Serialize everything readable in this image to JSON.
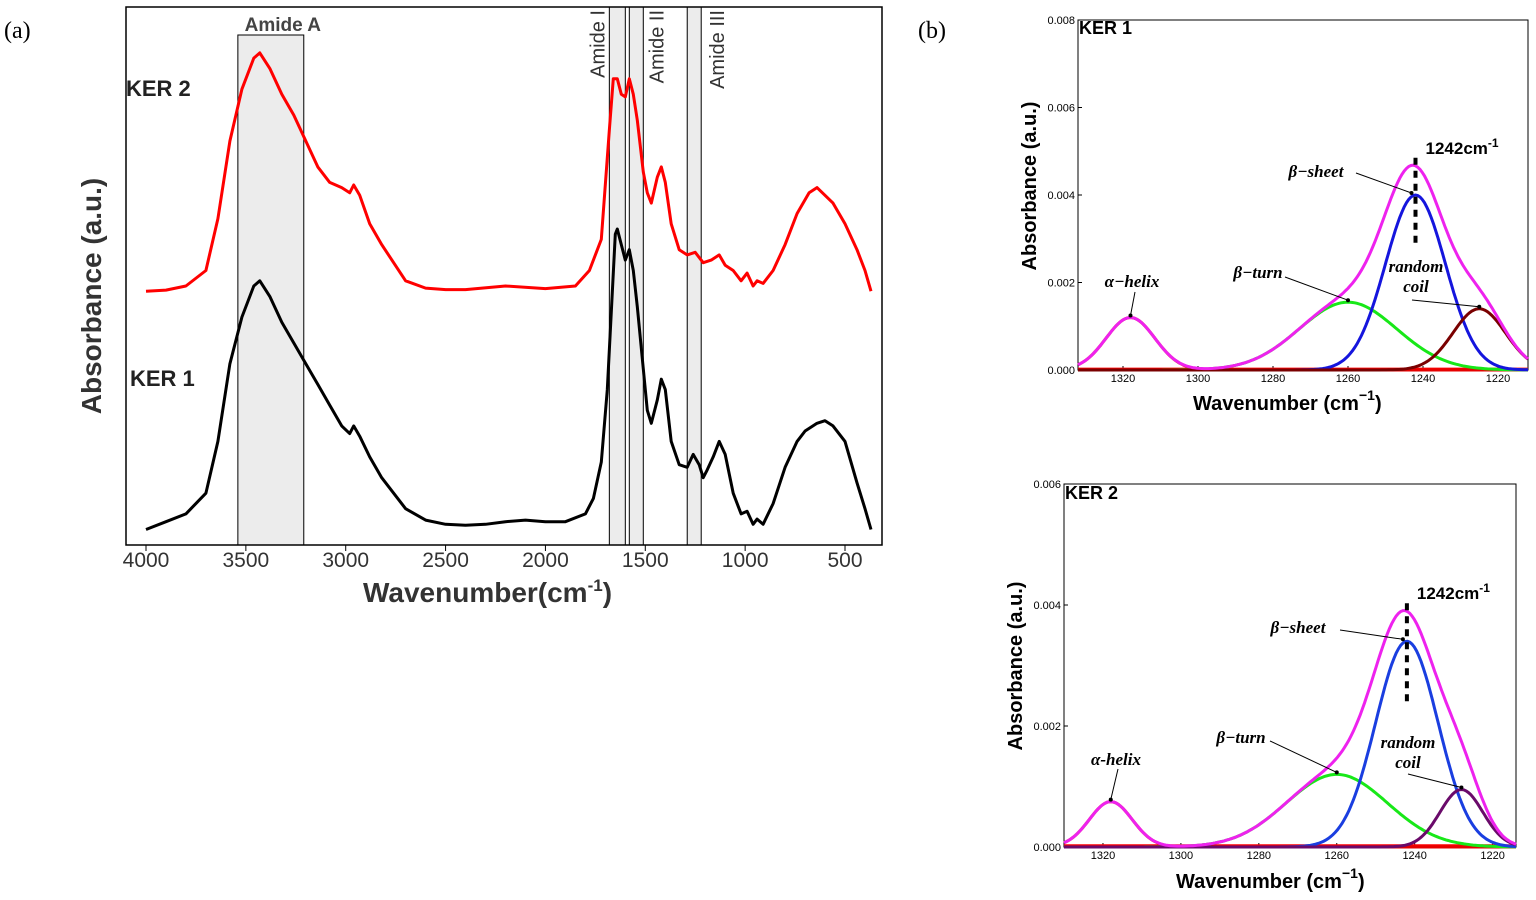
{
  "panel_labels": {
    "a": "(a)",
    "b": "(b)"
  },
  "chart_data": [
    {
      "type": "line",
      "panel": "(a)",
      "xlabel": "Wavenumber(cm",
      "xlabel_sup": "-1",
      "xlabel_close": ")",
      "ylabel": "Absorbance (a.u.)",
      "xlim": [
        4000,
        370
      ],
      "ylim": [
        0,
        1
      ],
      "x_ticks": [
        4000,
        3500,
        3000,
        2500,
        2000,
        1500,
        1000,
        500
      ],
      "x_tick_labels": [
        "4000",
        "3500",
        "3000",
        "2500",
        "2000",
        "1500",
        "1000",
        "500"
      ],
      "grid": false,
      "bands": [
        {
          "label": "Amide A",
          "from": 3540,
          "to": 3210,
          "orientation": "horizontal"
        },
        {
          "label": "Amide I",
          "from": 1680,
          "to": 1600,
          "orientation": "vertical"
        },
        {
          "label": "Amide II",
          "from": 1580,
          "to": 1510,
          "orientation": "vertical"
        },
        {
          "label": "Amide III",
          "from": 1290,
          "to": 1220,
          "orientation": "vertical"
        }
      ],
      "series": [
        {
          "name": "KER 2",
          "color": "#ff0000",
          "points": [
            [
              4000,
              0.49
            ],
            [
              3900,
              0.492
            ],
            [
              3800,
              0.5
            ],
            [
              3700,
              0.53
            ],
            [
              3640,
              0.63
            ],
            [
              3580,
              0.78
            ],
            [
              3520,
              0.88
            ],
            [
              3460,
              0.94
            ],
            [
              3430,
              0.95
            ],
            [
              3380,
              0.92
            ],
            [
              3320,
              0.87
            ],
            [
              3260,
              0.83
            ],
            [
              3200,
              0.78
            ],
            [
              3140,
              0.73
            ],
            [
              3080,
              0.7
            ],
            [
              3020,
              0.69
            ],
            [
              2980,
              0.68
            ],
            [
              2960,
              0.695
            ],
            [
              2930,
              0.675
            ],
            [
              2880,
              0.62
            ],
            [
              2820,
              0.58
            ],
            [
              2700,
              0.51
            ],
            [
              2600,
              0.496
            ],
            [
              2500,
              0.493
            ],
            [
              2400,
              0.493
            ],
            [
              2200,
              0.5
            ],
            [
              2000,
              0.495
            ],
            [
              1850,
              0.5
            ],
            [
              1780,
              0.53
            ],
            [
              1720,
              0.59
            ],
            [
              1680,
              0.8
            ],
            [
              1660,
              0.9
            ],
            [
              1640,
              0.9
            ],
            [
              1620,
              0.87
            ],
            [
              1600,
              0.865
            ],
            [
              1580,
              0.9
            ],
            [
              1560,
              0.87
            ],
            [
              1540,
              0.82
            ],
            [
              1510,
              0.72
            ],
            [
              1490,
              0.68
            ],
            [
              1470,
              0.66
            ],
            [
              1440,
              0.71
            ],
            [
              1420,
              0.73
            ],
            [
              1400,
              0.7
            ],
            [
              1370,
              0.62
            ],
            [
              1330,
              0.57
            ],
            [
              1290,
              0.56
            ],
            [
              1250,
              0.565
            ],
            [
              1210,
              0.545
            ],
            [
              1170,
              0.55
            ],
            [
              1130,
              0.56
            ],
            [
              1100,
              0.54
            ],
            [
              1060,
              0.53
            ],
            [
              1020,
              0.51
            ],
            [
              990,
              0.525
            ],
            [
              960,
              0.5
            ],
            [
              940,
              0.51
            ],
            [
              910,
              0.505
            ],
            [
              860,
              0.53
            ],
            [
              800,
              0.58
            ],
            [
              740,
              0.64
            ],
            [
              680,
              0.68
            ],
            [
              640,
              0.69
            ],
            [
              600,
              0.675
            ],
            [
              560,
              0.66
            ],
            [
              500,
              0.62
            ],
            [
              440,
              0.57
            ],
            [
              400,
              0.53
            ],
            [
              370,
              0.49
            ]
          ]
        },
        {
          "name": "KER 1",
          "color": "#000000",
          "points": [
            [
              4000,
              0.03
            ],
            [
              3900,
              0.045
            ],
            [
              3800,
              0.06
            ],
            [
              3700,
              0.1
            ],
            [
              3640,
              0.2
            ],
            [
              3580,
              0.35
            ],
            [
              3520,
              0.44
            ],
            [
              3460,
              0.5
            ],
            [
              3430,
              0.51
            ],
            [
              3380,
              0.48
            ],
            [
              3320,
              0.43
            ],
            [
              3260,
              0.39
            ],
            [
              3200,
              0.35
            ],
            [
              3140,
              0.31
            ],
            [
              3080,
              0.27
            ],
            [
              3020,
              0.23
            ],
            [
              2980,
              0.215
            ],
            [
              2960,
              0.23
            ],
            [
              2930,
              0.21
            ],
            [
              2880,
              0.17
            ],
            [
              2820,
              0.13
            ],
            [
              2700,
              0.07
            ],
            [
              2600,
              0.048
            ],
            [
              2500,
              0.04
            ],
            [
              2400,
              0.038
            ],
            [
              2300,
              0.04
            ],
            [
              2200,
              0.045
            ],
            [
              2100,
              0.048
            ],
            [
              2000,
              0.045
            ],
            [
              1900,
              0.045
            ],
            [
              1800,
              0.06
            ],
            [
              1760,
              0.09
            ],
            [
              1720,
              0.16
            ],
            [
              1690,
              0.3
            ],
            [
              1670,
              0.45
            ],
            [
              1650,
              0.6
            ],
            [
              1640,
              0.61
            ],
            [
              1620,
              0.58
            ],
            [
              1600,
              0.55
            ],
            [
              1580,
              0.57
            ],
            [
              1560,
              0.53
            ],
            [
              1540,
              0.46
            ],
            [
              1510,
              0.34
            ],
            [
              1490,
              0.26
            ],
            [
              1470,
              0.235
            ],
            [
              1440,
              0.28
            ],
            [
              1420,
              0.32
            ],
            [
              1400,
              0.3
            ],
            [
              1370,
              0.2
            ],
            [
              1330,
              0.155
            ],
            [
              1290,
              0.15
            ],
            [
              1260,
              0.175
            ],
            [
              1230,
              0.155
            ],
            [
              1210,
              0.13
            ],
            [
              1190,
              0.145
            ],
            [
              1160,
              0.17
            ],
            [
              1130,
              0.2
            ],
            [
              1100,
              0.175
            ],
            [
              1060,
              0.1
            ],
            [
              1020,
              0.06
            ],
            [
              990,
              0.065
            ],
            [
              960,
              0.04
            ],
            [
              940,
              0.05
            ],
            [
              910,
              0.04
            ],
            [
              860,
              0.08
            ],
            [
              800,
              0.15
            ],
            [
              740,
              0.2
            ],
            [
              700,
              0.22
            ],
            [
              640,
              0.235
            ],
            [
              600,
              0.24
            ],
            [
              560,
              0.23
            ],
            [
              500,
              0.2
            ],
            [
              440,
              0.12
            ],
            [
              400,
              0.07
            ],
            [
              370,
              0.03
            ]
          ]
        }
      ],
      "series_labels": [
        "KER 2",
        "KER 1"
      ]
    },
    {
      "type": "line",
      "panel": "(b)",
      "title": "KER 1",
      "xlabel": "Wavenumber (cm",
      "xlabel_sup": "−1",
      "xlabel_close": ")",
      "ylabel": "Absorbance (a.u.)",
      "xlim": [
        1332,
        1212
      ],
      "ylim": [
        0,
        0.008
      ],
      "x_ticks": [
        1320,
        1300,
        1280,
        1260,
        1240,
        1220
      ],
      "x_tick_labels": [
        "1320",
        "1300",
        "1280",
        "1260",
        "1240",
        "1220"
      ],
      "y_ticks": [
        0,
        0.002,
        0.004,
        0.006,
        0.008
      ],
      "y_tick_labels": [
        "0.000",
        "0.002",
        "0.004",
        "0.006",
        "0.008"
      ],
      "peak_marker": {
        "x": 1242,
        "label": "1242cm",
        "sup": "-1"
      },
      "components": [
        {
          "label": "α−helix",
          "color": "#e60000",
          "center": 1318,
          "amp": 0.0012,
          "sigma": 6.5
        },
        {
          "label": "β−turn",
          "color": "#18e818",
          "center": 1260,
          "amp": 0.00155,
          "sigma": 13
        },
        {
          "label": "β−sheet",
          "color": "#1515dd",
          "center": 1242,
          "amp": 0.004,
          "sigma": 8
        },
        {
          "label": "random coil",
          "color": "#7a0000",
          "center": 1225,
          "amp": 0.0014,
          "sigma": 7
        }
      ],
      "envelope_color": "#ee22ee",
      "baseline_color": "#ff0000"
    },
    {
      "type": "line",
      "panel": "(b)",
      "title": "KER 2",
      "xlabel": "Wavenumber (cm",
      "xlabel_sup": "−1",
      "xlabel_close": ")",
      "ylabel": "Absorbance (a.u.)",
      "xlim": [
        1330,
        1214
      ],
      "ylim": [
        0,
        0.006
      ],
      "x_ticks": [
        1320,
        1300,
        1280,
        1260,
        1240,
        1220
      ],
      "x_tick_labels": [
        "1320",
        "1300",
        "1280",
        "1260",
        "1240",
        "1220"
      ],
      "y_ticks": [
        0,
        0.002,
        0.004,
        0.006
      ],
      "y_tick_labels": [
        "0.000",
        "0.002",
        "0.004",
        "0.006"
      ],
      "peak_marker": {
        "x": 1242,
        "label": "1242cm",
        "sup": "-1"
      },
      "components": [
        {
          "label": "α-helix",
          "color": "#e60000",
          "center": 1318,
          "amp": 0.00075,
          "sigma": 5.5
        },
        {
          "label": "β−turn",
          "color": "#18e818",
          "center": 1260,
          "amp": 0.0012,
          "sigma": 13
        },
        {
          "label": "β−sheet",
          "color": "#1a3ee0",
          "center": 1242,
          "amp": 0.0034,
          "sigma": 8
        },
        {
          "label": "random coil",
          "color": "#6a0a6a",
          "center": 1228,
          "amp": 0.00095,
          "sigma": 5.5
        }
      ],
      "envelope_color": "#ee22ee",
      "baseline_color": "#ff0000"
    }
  ]
}
